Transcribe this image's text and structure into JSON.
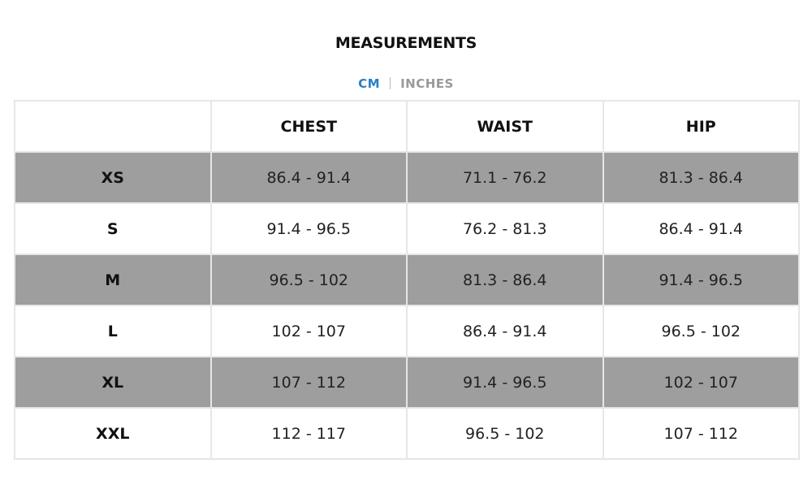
{
  "title": "MEASUREMENTS",
  "units": {
    "active": "CM",
    "inactive": "INCHES",
    "active_color": "#2d7fc1"
  },
  "table": {
    "headers": [
      "",
      "CHEST",
      "WAIST",
      "HIP"
    ],
    "rows": [
      {
        "size": "XS",
        "chest": "86.4 - 91.4",
        "waist": "71.1 - 76.2",
        "hip": "81.3 - 86.4"
      },
      {
        "size": "S",
        "chest": "91.4 - 96.5",
        "waist": "76.2 - 81.3",
        "hip": "86.4 - 91.4"
      },
      {
        "size": "M",
        "chest": "96.5 - 102",
        "waist": "81.3 - 86.4",
        "hip": "91.4 - 96.5"
      },
      {
        "size": "L",
        "chest": "102 - 107",
        "waist": "86.4 - 91.4",
        "hip": "96.5 - 102"
      },
      {
        "size": "XL",
        "chest": "107 - 112",
        "waist": "91.4 - 96.5",
        "hip": "102 - 107"
      },
      {
        "size": "XXL",
        "chest": "112 - 117",
        "waist": "96.5 - 102",
        "hip": "107 - 112"
      }
    ],
    "shade_color": "#9e9e9e"
  }
}
